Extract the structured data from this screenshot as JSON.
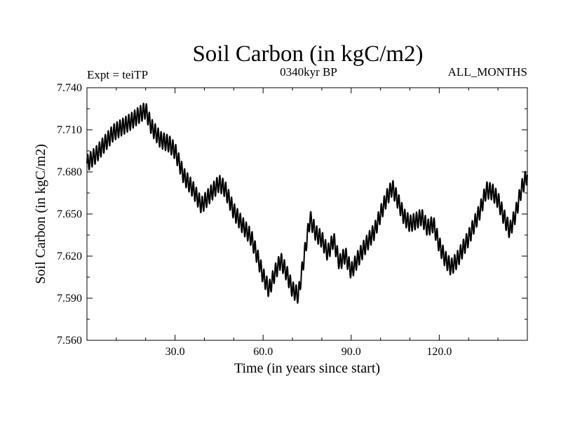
{
  "header": {
    "title": "Soil Carbon (in kgC/m2)",
    "subtitle": "0340kyr BP",
    "expt_label": "Expt = teiTP",
    "period_label": "ALL_MONTHS"
  },
  "colors": {
    "line": "#000000",
    "background": "#ffffff"
  },
  "chart_data": {
    "type": "line",
    "title": "Soil Carbon (in kgC/m2)",
    "subtitle": "0340kyr BP",
    "xlabel": "Time (in years since start)",
    "ylabel": "Soil Carbon (in kgC/m2)",
    "xlim": [
      0,
      150
    ],
    "ylim": [
      7.56,
      7.74
    ],
    "xticks": [
      30,
      60,
      90,
      120
    ],
    "xtick_labels": [
      "30.0",
      "60.0",
      "90.0",
      "120.0"
    ],
    "yticks": [
      7.56,
      7.59,
      7.62,
      7.65,
      7.68,
      7.71,
      7.74
    ],
    "ytick_labels": [
      "7.560",
      "7.590",
      "7.620",
      "7.650",
      "7.680",
      "7.710",
      "7.740"
    ],
    "grid": false,
    "seasonal_amplitude": 0.006,
    "samples_per_year": 12,
    "series": [
      {
        "name": "Soil Carbon",
        "note": "annual-mean trend (kgC/m2) at year x; plotted with a monthly seasonal cycle",
        "x": [
          0,
          3,
          6,
          9,
          12,
          15,
          18,
          20,
          22,
          25,
          28,
          30,
          33,
          36,
          39,
          42,
          45,
          47,
          50,
          53,
          56,
          58,
          60,
          62,
          64,
          66,
          68,
          70,
          72,
          74,
          76,
          78,
          80,
          82,
          84,
          86,
          88,
          90,
          92,
          95,
          98,
          100,
          102,
          104,
          106,
          108,
          110,
          112,
          114,
          116,
          118,
          120,
          122,
          124,
          126,
          128,
          130,
          132,
          134,
          136,
          138,
          140,
          142,
          144,
          146,
          148,
          150
        ],
        "y": [
          7.686,
          7.692,
          7.7,
          7.708,
          7.712,
          7.716,
          7.721,
          7.724,
          7.712,
          7.703,
          7.7,
          7.695,
          7.677,
          7.668,
          7.656,
          7.664,
          7.672,
          7.668,
          7.652,
          7.642,
          7.633,
          7.62,
          7.606,
          7.596,
          7.608,
          7.617,
          7.608,
          7.596,
          7.592,
          7.62,
          7.647,
          7.636,
          7.632,
          7.622,
          7.632,
          7.615,
          7.621,
          7.609,
          7.617,
          7.628,
          7.638,
          7.65,
          7.661,
          7.669,
          7.659,
          7.648,
          7.643,
          7.645,
          7.648,
          7.64,
          7.643,
          7.628,
          7.618,
          7.612,
          7.617,
          7.625,
          7.633,
          7.643,
          7.653,
          7.667,
          7.666,
          7.66,
          7.648,
          7.638,
          7.65,
          7.668,
          7.678
        ]
      }
    ]
  }
}
